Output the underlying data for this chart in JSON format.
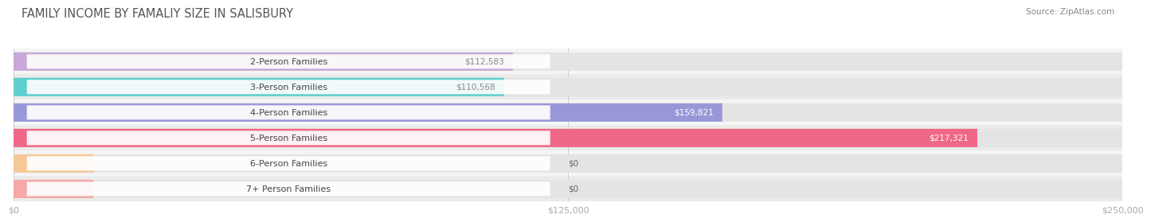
{
  "title": "FAMILY INCOME BY FAMALIY SIZE IN SALISBURY",
  "source": "Source: ZipAtlas.com",
  "categories": [
    "2-Person Families",
    "3-Person Families",
    "4-Person Families",
    "5-Person Families",
    "6-Person Families",
    "7+ Person Families"
  ],
  "values": [
    112583,
    110568,
    159821,
    217321,
    0,
    0
  ],
  "bar_colors": [
    "#c8a8d8",
    "#5ecece",
    "#9898d8",
    "#f06888",
    "#f5c898",
    "#f5a8a8"
  ],
  "value_label_colors": [
    "#888888",
    "#888888",
    "#ffffff",
    "#ffffff",
    "#888888",
    "#888888"
  ],
  "xlim": [
    0,
    250000
  ],
  "xtick_labels": [
    "$0",
    "$125,000",
    "$250,000"
  ],
  "xtick_vals": [
    0,
    125000,
    250000
  ],
  "background_color": "#ffffff",
  "row_bg_color": "#efefef",
  "bar_bg_color": "#e4e4e4",
  "title_fontsize": 10.5,
  "label_fontsize": 8,
  "value_fontsize": 7.5,
  "tick_fontsize": 8,
  "source_fontsize": 7.5
}
